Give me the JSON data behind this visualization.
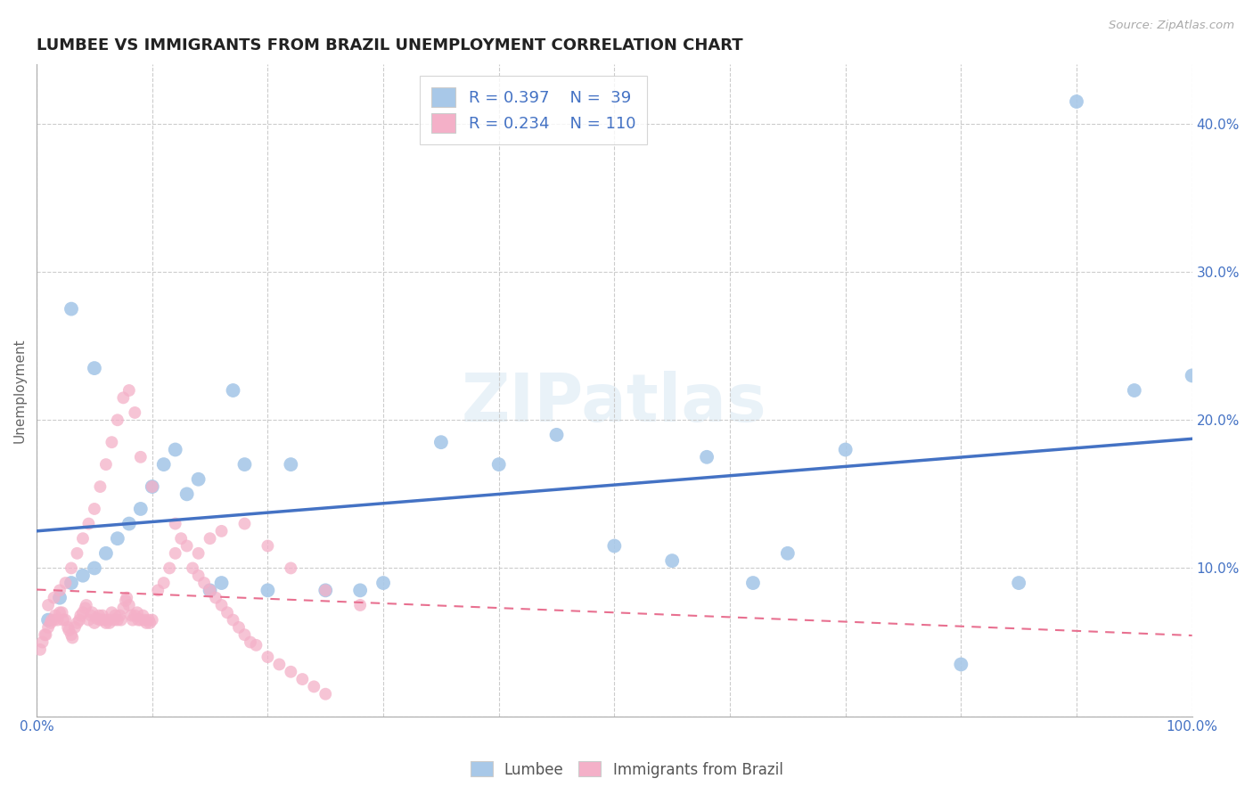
{
  "title": "LUMBEE VS IMMIGRANTS FROM BRAZIL UNEMPLOYMENT CORRELATION CHART",
  "source_text": "Source: ZipAtlas.com",
  "ylabel": "Unemployment",
  "xlim": [
    0,
    1.0
  ],
  "ylim": [
    0,
    0.44
  ],
  "xticks": [
    0.0,
    0.1,
    0.2,
    0.3,
    0.4,
    0.5,
    0.6,
    0.7,
    0.8,
    0.9,
    1.0
  ],
  "xticklabels": [
    "0.0%",
    "",
    "",
    "",
    "",
    "",
    "",
    "",
    "",
    "",
    "100.0%"
  ],
  "yticks_right": [
    0.0,
    0.1,
    0.2,
    0.3,
    0.4
  ],
  "yticklabels_right": [
    "",
    "10.0%",
    "20.0%",
    "30.0%",
    "40.0%"
  ],
  "grid_color": "#cccccc",
  "background_color": "#ffffff",
  "lumbee_color": "#a8c8e8",
  "brazil_color": "#f4b0c8",
  "lumbee_line_color": "#4472c4",
  "brazil_line_color": "#e87090",
  "lumbee_R": 0.397,
  "lumbee_N": 39,
  "brazil_R": 0.234,
  "brazil_N": 110,
  "lumbee_x": [
    0.01,
    0.02,
    0.03,
    0.04,
    0.05,
    0.06,
    0.07,
    0.08,
    0.09,
    0.1,
    0.11,
    0.12,
    0.13,
    0.14,
    0.15,
    0.16,
    0.17,
    0.18,
    0.2,
    0.22,
    0.28,
    0.35,
    0.4,
    0.45,
    0.5,
    0.55,
    0.58,
    0.62,
    0.65,
    0.7,
    0.8,
    0.85,
    0.9,
    0.95,
    1.0,
    0.03,
    0.05,
    0.25,
    0.3
  ],
  "lumbee_y": [
    0.065,
    0.08,
    0.09,
    0.095,
    0.1,
    0.11,
    0.12,
    0.13,
    0.14,
    0.155,
    0.17,
    0.18,
    0.15,
    0.16,
    0.085,
    0.09,
    0.22,
    0.17,
    0.085,
    0.17,
    0.085,
    0.185,
    0.17,
    0.19,
    0.115,
    0.105,
    0.175,
    0.09,
    0.11,
    0.18,
    0.035,
    0.09,
    0.415,
    0.22,
    0.23,
    0.275,
    0.235,
    0.085,
    0.09
  ],
  "brazil_x": [
    0.003,
    0.005,
    0.007,
    0.008,
    0.01,
    0.012,
    0.013,
    0.015,
    0.016,
    0.018,
    0.02,
    0.022,
    0.023,
    0.025,
    0.027,
    0.028,
    0.03,
    0.031,
    0.033,
    0.035,
    0.037,
    0.038,
    0.04,
    0.042,
    0.043,
    0.045,
    0.047,
    0.048,
    0.05,
    0.052,
    0.054,
    0.055,
    0.057,
    0.058,
    0.06,
    0.062,
    0.063,
    0.065,
    0.067,
    0.068,
    0.07,
    0.072,
    0.073,
    0.075,
    0.077,
    0.078,
    0.08,
    0.082,
    0.083,
    0.085,
    0.087,
    0.088,
    0.09,
    0.092,
    0.093,
    0.095,
    0.097,
    0.098,
    0.1,
    0.105,
    0.11,
    0.115,
    0.12,
    0.125,
    0.13,
    0.135,
    0.14,
    0.145,
    0.15,
    0.155,
    0.16,
    0.165,
    0.17,
    0.175,
    0.18,
    0.185,
    0.19,
    0.2,
    0.21,
    0.22,
    0.23,
    0.24,
    0.25,
    0.01,
    0.015,
    0.02,
    0.025,
    0.03,
    0.035,
    0.04,
    0.045,
    0.05,
    0.055,
    0.06,
    0.065,
    0.07,
    0.075,
    0.08,
    0.085,
    0.09,
    0.1,
    0.12,
    0.14,
    0.15,
    0.16,
    0.18,
    0.2,
    0.22,
    0.25,
    0.28
  ],
  "brazil_y": [
    0.045,
    0.05,
    0.055,
    0.055,
    0.06,
    0.063,
    0.065,
    0.065,
    0.068,
    0.065,
    0.07,
    0.07,
    0.065,
    0.065,
    0.06,
    0.058,
    0.055,
    0.053,
    0.06,
    0.063,
    0.065,
    0.068,
    0.07,
    0.073,
    0.075,
    0.065,
    0.068,
    0.07,
    0.063,
    0.066,
    0.068,
    0.065,
    0.068,
    0.065,
    0.063,
    0.065,
    0.063,
    0.07,
    0.065,
    0.068,
    0.065,
    0.068,
    0.065,
    0.073,
    0.078,
    0.08,
    0.075,
    0.068,
    0.065,
    0.068,
    0.07,
    0.065,
    0.065,
    0.068,
    0.065,
    0.063,
    0.065,
    0.063,
    0.065,
    0.085,
    0.09,
    0.1,
    0.11,
    0.12,
    0.115,
    0.1,
    0.095,
    0.09,
    0.085,
    0.08,
    0.075,
    0.07,
    0.065,
    0.06,
    0.055,
    0.05,
    0.048,
    0.04,
    0.035,
    0.03,
    0.025,
    0.02,
    0.015,
    0.075,
    0.08,
    0.085,
    0.09,
    0.1,
    0.11,
    0.12,
    0.13,
    0.14,
    0.155,
    0.17,
    0.185,
    0.2,
    0.215,
    0.22,
    0.205,
    0.175,
    0.155,
    0.13,
    0.11,
    0.12,
    0.125,
    0.13,
    0.115,
    0.1,
    0.085,
    0.075
  ]
}
